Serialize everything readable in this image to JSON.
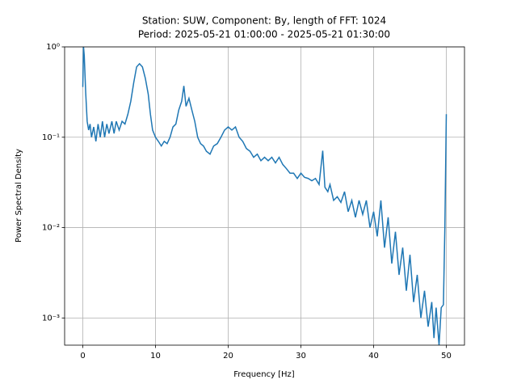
{
  "chart_data": {
    "type": "line",
    "title": "Station: SUW, Component: By, length of FFT: 1024",
    "subtitle": "Period: 2025-05-21 01:00:00 - 2025-05-21 01:30:00",
    "xlabel": "Frequency [Hz]",
    "ylabel": "Power Spectral Density",
    "x": [
      0,
      0.1,
      0.2,
      0.4,
      0.6,
      0.8,
      1,
      1.2,
      1.5,
      1.8,
      2.1,
      2.4,
      2.7,
      3,
      3.3,
      3.6,
      4,
      4.3,
      4.6,
      5,
      5.4,
      5.8,
      6.2,
      6.6,
      7,
      7.4,
      7.8,
      8.2,
      8.6,
      9,
      9.3,
      9.6,
      10,
      10.4,
      10.8,
      11.2,
      11.6,
      12,
      12.4,
      12.8,
      13.2,
      13.6,
      13.9,
      14.2,
      14.6,
      15,
      15.4,
      15.8,
      16.2,
      16.6,
      17,
      17.5,
      18,
      18.5,
      19,
      19.5,
      20,
      20.5,
      21,
      21.5,
      22,
      22.5,
      23,
      23.5,
      24,
      24.5,
      25,
      25.5,
      26,
      26.5,
      27,
      27.5,
      28,
      28.5,
      29,
      29.5,
      30,
      30.5,
      31,
      31.5,
      32,
      32.5,
      33,
      33.3,
      33.7,
      34,
      34.5,
      35,
      35.5,
      36,
      36.5,
      37,
      37.5,
      38,
      38.5,
      39,
      39.5,
      40,
      40.5,
      41,
      41.5,
      42,
      42.5,
      43,
      43.5,
      44,
      44.5,
      45,
      45.5,
      46,
      46.5,
      47,
      47.5,
      48,
      48.3,
      48.6,
      49,
      49.3,
      49.6,
      49.8,
      50
    ],
    "series": [
      {
        "color": "#1f77b4",
        "values": [
          0.36,
          1.0,
          0.8,
          0.31,
          0.15,
          0.12,
          0.14,
          0.1,
          0.13,
          0.09,
          0.14,
          0.1,
          0.15,
          0.1,
          0.14,
          0.11,
          0.15,
          0.11,
          0.15,
          0.12,
          0.15,
          0.14,
          0.18,
          0.25,
          0.4,
          0.6,
          0.65,
          0.6,
          0.45,
          0.3,
          0.18,
          0.12,
          0.1,
          0.09,
          0.08,
          0.09,
          0.085,
          0.1,
          0.13,
          0.14,
          0.2,
          0.25,
          0.37,
          0.22,
          0.27,
          0.2,
          0.15,
          0.1,
          0.085,
          0.08,
          0.07,
          0.065,
          0.08,
          0.085,
          0.1,
          0.12,
          0.13,
          0.12,
          0.13,
          0.1,
          0.09,
          0.075,
          0.07,
          0.06,
          0.065,
          0.055,
          0.06,
          0.055,
          0.06,
          0.052,
          0.06,
          0.05,
          0.045,
          0.04,
          0.04,
          0.035,
          0.04,
          0.036,
          0.035,
          0.033,
          0.035,
          0.03,
          0.071,
          0.028,
          0.025,
          0.03,
          0.02,
          0.022,
          0.019,
          0.025,
          0.015,
          0.02,
          0.013,
          0.02,
          0.014,
          0.02,
          0.01,
          0.015,
          0.008,
          0.02,
          0.006,
          0.013,
          0.004,
          0.009,
          0.003,
          0.006,
          0.002,
          0.005,
          0.0015,
          0.003,
          0.001,
          0.002,
          0.0008,
          0.0015,
          0.0006,
          0.0013,
          0.0005,
          0.0013,
          0.0014,
          0.01,
          0.18
        ]
      }
    ],
    "xlim": [
      -2.5,
      52.5
    ],
    "xticks": [
      0,
      10,
      20,
      30,
      40,
      50
    ],
    "ylim": [
      0.0005,
      1
    ],
    "ylog": true,
    "yticks": [
      {
        "value": 0.001,
        "label": "10⁻³"
      },
      {
        "value": 0.01,
        "label": "10⁻²"
      },
      {
        "value": 0.1,
        "label": "10⁻¹"
      },
      {
        "value": 1,
        "label": "10⁰"
      }
    ],
    "grid": true
  }
}
